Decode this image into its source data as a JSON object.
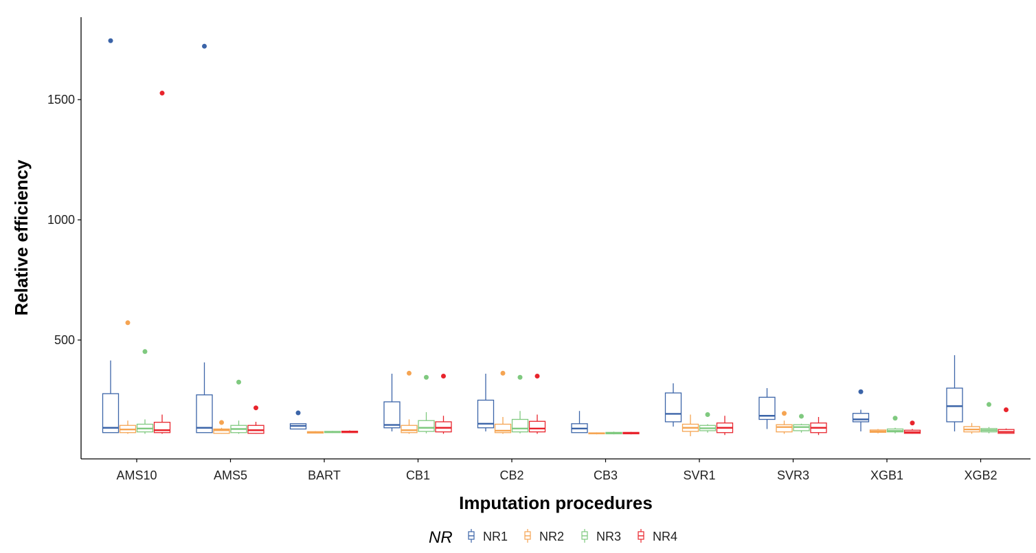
{
  "chart_data": {
    "type": "boxplot",
    "title": "",
    "xlabel": "Imputation procedures",
    "ylabel": "Relative efficiency",
    "ylim": [
      50,
      1800
    ],
    "yticks": [
      500,
      1000,
      1500
    ],
    "grid": false,
    "legend": {
      "title": "NR",
      "position": "bottom",
      "entries": [
        "NR1",
        "NR2",
        "NR3",
        "NR4"
      ]
    },
    "categories": [
      "AMS10",
      "AMS5",
      "BART",
      "CB1",
      "CB2",
      "CB3",
      "SVR1",
      "SVR3",
      "XGB1",
      "XGB2"
    ],
    "series": [
      {
        "name": "NR1",
        "color": "#3B64A8",
        "boxes": [
          {
            "whislo": 115,
            "q1": 115,
            "med": 135,
            "q3": 277,
            "whishi": 415,
            "outliers": [
              1745
            ]
          },
          {
            "whislo": 115,
            "q1": 115,
            "med": 135,
            "q3": 272,
            "whishi": 407,
            "outliers": [
              1722
            ]
          },
          {
            "whislo": 130,
            "q1": 130,
            "med": 143,
            "q3": 152,
            "whishi": 152,
            "outliers": [
              197
            ]
          },
          {
            "whislo": 120,
            "q1": 135,
            "med": 147,
            "q3": 243,
            "whishi": 360,
            "outliers": []
          },
          {
            "whislo": 120,
            "q1": 135,
            "med": 152,
            "q3": 250,
            "whishi": 360,
            "outliers": []
          },
          {
            "whislo": 115,
            "q1": 115,
            "med": 132,
            "q3": 152,
            "whishi": 205,
            "outliers": []
          },
          {
            "whislo": 140,
            "q1": 160,
            "med": 193,
            "q3": 280,
            "whishi": 320,
            "outliers": []
          },
          {
            "whislo": 130,
            "q1": 170,
            "med": 185,
            "q3": 262,
            "whishi": 300,
            "outliers": []
          },
          {
            "whislo": 120,
            "q1": 160,
            "med": 170,
            "q3": 195,
            "whishi": 210,
            "outliers": [
              285
            ]
          },
          {
            "whislo": 120,
            "q1": 160,
            "med": 225,
            "q3": 300,
            "whishi": 437,
            "outliers": []
          }
        ]
      },
      {
        "name": "NR2",
        "color": "#F5A452",
        "boxes": [
          {
            "whislo": 110,
            "q1": 115,
            "med": 128,
            "q3": 145,
            "whishi": 165,
            "outliers": [
              572
            ]
          },
          {
            "whislo": 110,
            "q1": 112,
            "med": 125,
            "q3": 130,
            "whishi": 135,
            "outliers": [
              157
            ]
          },
          {
            "whislo": 112,
            "q1": 113,
            "med": 116,
            "q3": 119,
            "whishi": 121,
            "outliers": []
          },
          {
            "whislo": 110,
            "q1": 115,
            "med": 125,
            "q3": 145,
            "whishi": 170,
            "outliers": [
              362
            ]
          },
          {
            "whislo": 110,
            "q1": 115,
            "med": 123,
            "q3": 150,
            "whishi": 180,
            "outliers": [
              362
            ]
          },
          {
            "whislo": 108,
            "q1": 110,
            "med": 112,
            "q3": 114,
            "whishi": 116,
            "outliers": []
          },
          {
            "whislo": 100,
            "q1": 120,
            "med": 135,
            "q3": 150,
            "whishi": 190,
            "outliers": []
          },
          {
            "whislo": 110,
            "q1": 118,
            "med": 138,
            "q3": 148,
            "whishi": 165,
            "outliers": [
              195
            ]
          },
          {
            "whislo": 112,
            "q1": 116,
            "med": 120,
            "q3": 126,
            "whishi": 130,
            "outliers": []
          },
          {
            "whislo": 110,
            "q1": 118,
            "med": 128,
            "q3": 140,
            "whishi": 155,
            "outliers": []
          }
        ]
      },
      {
        "name": "NR3",
        "color": "#7FC97F",
        "boxes": [
          {
            "whislo": 110,
            "q1": 118,
            "med": 132,
            "q3": 150,
            "whishi": 170,
            "outliers": [
              452
            ]
          },
          {
            "whislo": 110,
            "q1": 115,
            "med": 130,
            "q3": 145,
            "whishi": 165,
            "outliers": [
              325
            ]
          },
          {
            "whislo": 114,
            "q1": 115,
            "med": 118,
            "q3": 120,
            "whishi": 122,
            "outliers": []
          },
          {
            "whislo": 112,
            "q1": 120,
            "med": 135,
            "q3": 165,
            "whishi": 200,
            "outliers": [
              345
            ]
          },
          {
            "whislo": 112,
            "q1": 118,
            "med": 132,
            "q3": 170,
            "whishi": 205,
            "outliers": [
              345
            ]
          },
          {
            "whislo": 108,
            "q1": 110,
            "med": 113,
            "q3": 116,
            "whishi": 119,
            "outliers": []
          },
          {
            "whislo": 115,
            "q1": 123,
            "med": 133,
            "q3": 145,
            "whishi": 150,
            "outliers": [
              190
            ]
          },
          {
            "whislo": 115,
            "q1": 123,
            "med": 138,
            "q3": 148,
            "whishi": 152,
            "outliers": [
              183
            ]
          },
          {
            "whislo": 112,
            "q1": 118,
            "med": 122,
            "q3": 130,
            "whishi": 135,
            "outliers": [
              175
            ]
          },
          {
            "whislo": 112,
            "q1": 118,
            "med": 125,
            "q3": 132,
            "whishi": 138,
            "outliers": [
              232
            ]
          }
        ]
      },
      {
        "name": "NR4",
        "color": "#E8242C",
        "boxes": [
          {
            "whislo": 110,
            "q1": 115,
            "med": 125,
            "q3": 158,
            "whishi": 190,
            "outliers": [
              1527
            ]
          },
          {
            "whislo": 110,
            "q1": 112,
            "med": 125,
            "q3": 145,
            "whishi": 160,
            "outliers": [
              218
            ]
          },
          {
            "whislo": 114,
            "q1": 115,
            "med": 118,
            "q3": 121,
            "whishi": 124,
            "outliers": []
          },
          {
            "whislo": 110,
            "q1": 118,
            "med": 135,
            "q3": 160,
            "whishi": 185,
            "outliers": [
              350
            ]
          },
          {
            "whislo": 110,
            "q1": 118,
            "med": 132,
            "q3": 162,
            "whishi": 190,
            "outliers": [
              350
            ]
          },
          {
            "whislo": 108,
            "q1": 110,
            "med": 113,
            "q3": 116,
            "whishi": 118,
            "outliers": []
          },
          {
            "whislo": 105,
            "q1": 115,
            "med": 135,
            "q3": 155,
            "whishi": 185,
            "outliers": []
          },
          {
            "whislo": 105,
            "q1": 115,
            "med": 135,
            "q3": 155,
            "whishi": 180,
            "outliers": []
          },
          {
            "whislo": 110,
            "q1": 112,
            "med": 117,
            "q3": 125,
            "whishi": 130,
            "outliers": [
              155
            ]
          },
          {
            "whislo": 110,
            "q1": 112,
            "med": 118,
            "q3": 128,
            "whishi": 132,
            "outliers": [
              210
            ]
          }
        ]
      }
    ]
  }
}
